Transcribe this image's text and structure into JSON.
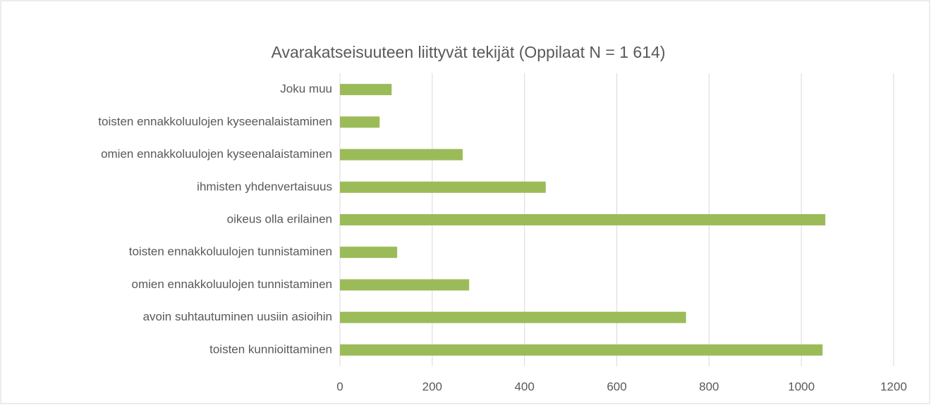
{
  "chart_data": {
    "type": "bar",
    "orientation": "horizontal",
    "title": "Avarakatseisuuteen liittyvät tekijät (Oppilaat N = 1 614)",
    "categories": [
      "Joku muu",
      "toisten ennakkoluulojen kyseenalaistaminen",
      "omien ennakkoluulojen kyseenalaistaminen",
      "ihmisten yhdenvertaisuus",
      "oikeus olla erilainen",
      "toisten ennakkoluulojen tunnistaminen",
      "omien ennakkoluulojen tunnistaminen",
      "avoin suhtautuminen uusiin asioihin",
      "toisten kunnioittaminen"
    ],
    "values": [
      112,
      86,
      266,
      446,
      1052,
      124,
      280,
      750,
      1046
    ],
    "color": "#9bbb59",
    "xlim": [
      0,
      1200
    ],
    "xticks": [
      0,
      200,
      400,
      600,
      800,
      1000,
      1200
    ],
    "grid": true
  }
}
